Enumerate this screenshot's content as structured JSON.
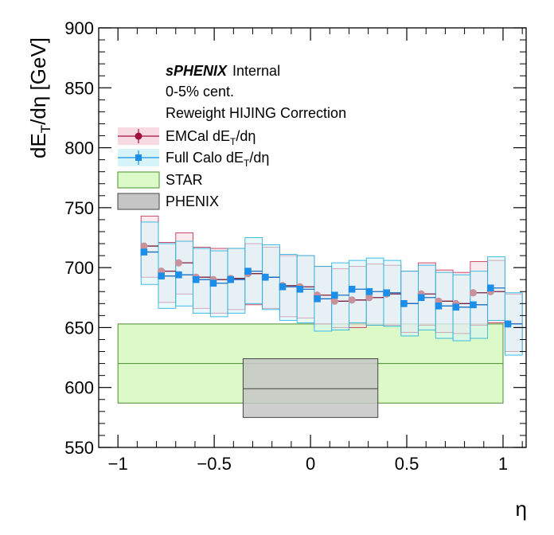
{
  "chart_data": {
    "type": "line",
    "title": "",
    "xlabel": "η",
    "ylabel": "dE_T/dη [GeV]",
    "xlim": [
      -1.1,
      1.12
    ],
    "ylim": [
      550,
      900
    ],
    "x_ticks": [
      -1,
      -0.5,
      0,
      0.5,
      1
    ],
    "x_tick_labels": [
      "−1",
      "−0.5",
      "0",
      "0.5",
      "1"
    ],
    "y_ticks": [
      550,
      600,
      650,
      700,
      750,
      800,
      850,
      900
    ],
    "y_tick_labels": [
      "550",
      "600",
      "650",
      "700",
      "750",
      "800",
      "850",
      "900"
    ],
    "annotations": {
      "experiment": "sPHENIX",
      "status": "Internal",
      "centrality": "0-5% cent.",
      "correction": "Reweight HIJING Correction"
    },
    "legend": {
      "placement": "top-left",
      "entries": [
        {
          "label_main": "EMCal dE",
          "label_sub": "T",
          "label_tail": "/dη",
          "color": "#a0103c",
          "fill": "#f8dbe2",
          "marker": "circle"
        },
        {
          "label_main": "Full Calo dE",
          "label_sub": "T",
          "label_tail": "/dη",
          "color": "#1a8ee8",
          "fill": "#d7f4f8",
          "marker": "square"
        },
        {
          "label_main": "STAR",
          "label_sub": "",
          "label_tail": "",
          "color": "#4c8c2e",
          "fill": "#dcfac8",
          "marker": "box"
        },
        {
          "label_main": "PHENIX",
          "label_sub": "",
          "label_tail": "",
          "color": "#444444",
          "fill": "#c5c5c5",
          "marker": "box"
        }
      ]
    },
    "bin_edges": [
      -0.88,
      -0.79,
      -0.7,
      -0.61,
      -0.52,
      -0.43,
      -0.34,
      -0.25,
      -0.16,
      -0.07,
      0.02,
      0.11,
      0.2,
      0.29,
      0.38,
      0.47,
      0.56,
      0.65,
      0.74,
      0.83,
      0.92,
      1.01,
      1.1
    ],
    "series": [
      {
        "name": "EMCal dE_T/dη",
        "x": [
          -0.865,
          -0.775,
          -0.685,
          -0.595,
          -0.505,
          -0.415,
          -0.325,
          -0.235,
          -0.145,
          -0.055,
          0.035,
          0.125,
          0.215,
          0.305,
          0.395,
          0.485,
          0.575,
          0.665,
          0.755,
          0.845,
          0.935,
          1.025
        ],
        "y": [
          718,
          697,
          704,
          692,
          690,
          691,
          695,
          692,
          685,
          684,
          677,
          672,
          673,
          675,
          678,
          670,
          678,
          672,
          670,
          679,
          680,
          653
        ],
        "y_low": [
          692,
          671,
          678,
          666,
          662,
          665,
          669,
          666,
          659,
          658,
          653,
          650,
          650,
          652,
          652,
          646,
          652,
          646,
          645,
          652,
          654,
          630
        ],
        "y_high": [
          743,
          721,
          729,
          717,
          716,
          716,
          720,
          717,
          710,
          710,
          701,
          699,
          701,
          703,
          702,
          697,
          704,
          698,
          696,
          705,
          706,
          678
        ]
      },
      {
        "name": "Full Calo dE_T/dη",
        "x": [
          -0.865,
          -0.775,
          -0.685,
          -0.595,
          -0.505,
          -0.415,
          -0.325,
          -0.235,
          -0.145,
          -0.055,
          0.035,
          0.125,
          0.215,
          0.305,
          0.395,
          0.485,
          0.575,
          0.665,
          0.755,
          0.845,
          0.935,
          1.025
        ],
        "y": [
          713,
          693,
          694,
          690,
          687,
          690,
          697,
          692,
          684,
          682,
          674,
          677,
          682,
          680,
          679,
          670,
          675,
          668,
          667,
          669,
          683,
          653
        ],
        "y_low": [
          686,
          666,
          668,
          662,
          659,
          662,
          670,
          665,
          656,
          654,
          647,
          648,
          654,
          652,
          651,
          643,
          648,
          641,
          639,
          641,
          656,
          627
        ],
        "y_high": [
          738,
          720,
          722,
          716,
          714,
          716,
          725,
          719,
          711,
          710,
          701,
          704,
          706,
          708,
          706,
          697,
          702,
          696,
          694,
          697,
          709,
          679
        ]
      }
    ],
    "bands": [
      {
        "name": "STAR",
        "x": [
          -1.0,
          1.0
        ],
        "central": 620,
        "low": 587,
        "high": 653
      },
      {
        "name": "PHENIX",
        "x": [
          -0.35,
          0.35
        ],
        "central": 599,
        "low": 575,
        "high": 624
      }
    ]
  }
}
